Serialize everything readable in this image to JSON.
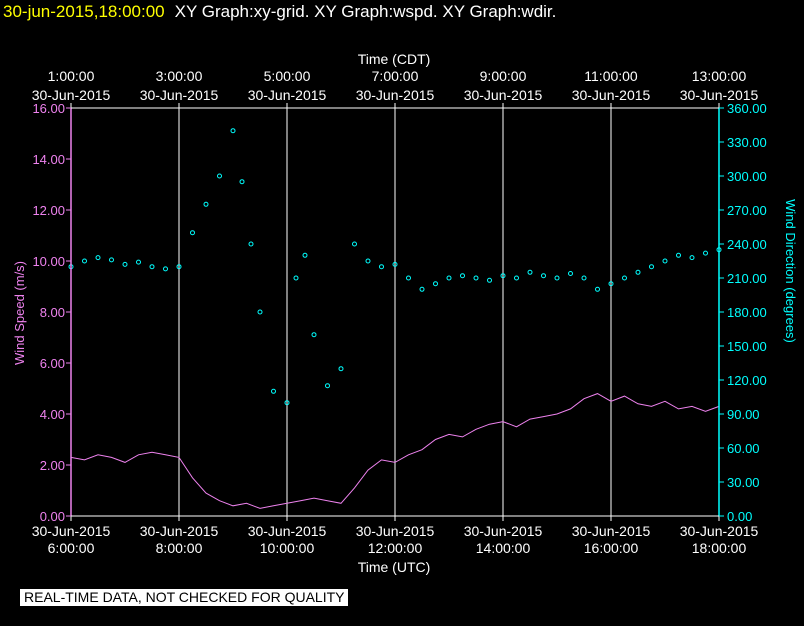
{
  "header": {
    "timestamp": "30-jun-2015,18:00:00",
    "graphs": "XY Graph:xy-grid.  XY Graph:wspd.  XY Graph:wdir."
  },
  "notice": "REAL-TIME DATA, NOT CHECKED FOR QUALITY",
  "colors": {
    "wspd": "#ee82ee",
    "wdir": "#00ffff",
    "grid": "#ffffff",
    "background": "#000000"
  },
  "chart_data": {
    "type": "scatter",
    "grid": true,
    "x_bottom": {
      "label": "Time (UTC)",
      "range": [
        "2015-06-30T06:00",
        "2015-06-30T18:00"
      ],
      "ticks": [
        {
          "date": "30-Jun-2015",
          "time": "6:00:00"
        },
        {
          "date": "30-Jun-2015",
          "time": "8:00:00"
        },
        {
          "date": "30-Jun-2015",
          "time": "10:00:00"
        },
        {
          "date": "30-Jun-2015",
          "time": "12:00:00"
        },
        {
          "date": "30-Jun-2015",
          "time": "14:00:00"
        },
        {
          "date": "30-Jun-2015",
          "time": "16:00:00"
        },
        {
          "date": "30-Jun-2015",
          "time": "18:00:00"
        }
      ]
    },
    "x_top": {
      "label": "Time (CDT)",
      "ticks": [
        {
          "date": "30-Jun-2015",
          "time": "1:00:00"
        },
        {
          "date": "30-Jun-2015",
          "time": "3:00:00"
        },
        {
          "date": "30-Jun-2015",
          "time": "5:00:00"
        },
        {
          "date": "30-Jun-2015",
          "time": "7:00:00"
        },
        {
          "date": "30-Jun-2015",
          "time": "9:00:00"
        },
        {
          "date": "30-Jun-2015",
          "time": "11:00:00"
        },
        {
          "date": "30-Jun-2015",
          "time": "13:00:00"
        }
      ]
    },
    "y_left": {
      "label": "Wind Speed (m/s)",
      "range": [
        0,
        16
      ],
      "ticks": [
        "0.00",
        "2.00",
        "4.00",
        "6.00",
        "8.00",
        "10.00",
        "12.00",
        "14.00",
        "16.00"
      ]
    },
    "y_right": {
      "label": "Wind Direction (degrees)",
      "range": [
        0,
        360
      ],
      "ticks": [
        "0.00",
        "30.00",
        "60.00",
        "90.00",
        "120.00",
        "150.00",
        "180.00",
        "210.00",
        "240.00",
        "270.00",
        "300.00",
        "330.00",
        "360.00"
      ]
    },
    "series": [
      {
        "key": "wspd",
        "type": "line",
        "axis": "left",
        "x": [
          "06:00",
          "06:15",
          "06:30",
          "06:45",
          "07:00",
          "07:15",
          "07:30",
          "07:45",
          "08:00",
          "08:15",
          "08:30",
          "08:45",
          "09:00",
          "09:15",
          "09:30",
          "09:45",
          "10:00",
          "10:15",
          "10:30",
          "10:45",
          "11:00",
          "11:15",
          "11:30",
          "11:45",
          "12:00",
          "12:15",
          "12:30",
          "12:45",
          "13:00",
          "13:15",
          "13:30",
          "13:45",
          "14:00",
          "14:15",
          "14:30",
          "14:45",
          "15:00",
          "15:15",
          "15:30",
          "15:45",
          "16:00",
          "16:15",
          "16:30",
          "16:45",
          "17:00",
          "17:15",
          "17:30",
          "17:45",
          "18:00"
        ],
        "y": [
          2.3,
          2.2,
          2.4,
          2.3,
          2.1,
          2.4,
          2.5,
          2.4,
          2.3,
          1.5,
          0.9,
          0.6,
          0.4,
          0.5,
          0.3,
          0.4,
          0.5,
          0.6,
          0.7,
          0.6,
          0.5,
          1.1,
          1.8,
          2.2,
          2.1,
          2.4,
          2.6,
          3.0,
          3.2,
          3.1,
          3.4,
          3.6,
          3.7,
          3.5,
          3.8,
          3.9,
          4.0,
          4.2,
          4.6,
          4.8,
          4.5,
          4.7,
          4.4,
          4.3,
          4.5,
          4.2,
          4.3,
          4.1,
          4.3
        ]
      },
      {
        "key": "wdir",
        "type": "scatter",
        "axis": "right",
        "x": [
          "06:00",
          "06:15",
          "06:30",
          "06:45",
          "07:00",
          "07:15",
          "07:30",
          "07:45",
          "08:00",
          "08:15",
          "08:30",
          "08:45",
          "09:00",
          "09:10",
          "09:20",
          "09:30",
          "09:45",
          "10:00",
          "10:10",
          "10:20",
          "10:30",
          "10:45",
          "11:00",
          "11:15",
          "11:30",
          "11:45",
          "12:00",
          "12:15",
          "12:30",
          "12:45",
          "13:00",
          "13:15",
          "13:30",
          "13:45",
          "14:00",
          "14:15",
          "14:30",
          "14:45",
          "15:00",
          "15:15",
          "15:30",
          "15:45",
          "16:00",
          "16:15",
          "16:30",
          "16:45",
          "17:00",
          "17:15",
          "17:30",
          "17:45",
          "18:00"
        ],
        "y": [
          220,
          225,
          228,
          226,
          222,
          224,
          220,
          218,
          220,
          250,
          275,
          300,
          340,
          295,
          240,
          180,
          110,
          100,
          210,
          230,
          160,
          115,
          130,
          240,
          225,
          220,
          222,
          210,
          200,
          205,
          210,
          212,
          210,
          208,
          212,
          210,
          215,
          212,
          210,
          214,
          210,
          200,
          205,
          210,
          215,
          220,
          225,
          230,
          228,
          232,
          235
        ]
      }
    ]
  }
}
